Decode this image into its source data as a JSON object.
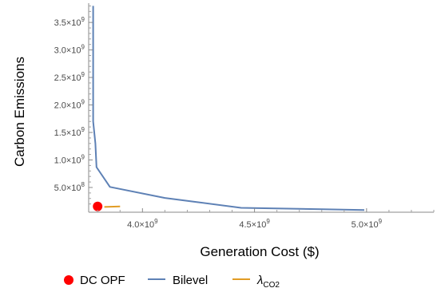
{
  "chart_data": {
    "type": "line",
    "title": "",
    "xlabel": "Generation Cost ($)",
    "ylabel": "Carbon Emissions",
    "xlim": [
      3760000000.0,
      5300000000.0
    ],
    "ylim": [
      50000000.0,
      3850000000.0
    ],
    "x_ticks": [
      {
        "value": 4000000000.0,
        "mantissa": "4.0",
        "exp": "9"
      },
      {
        "value": 4500000000.0,
        "mantissa": "4.5",
        "exp": "9"
      },
      {
        "value": 5000000000.0,
        "mantissa": "5.0",
        "exp": "9"
      }
    ],
    "y_ticks": [
      {
        "value": 500000000.0,
        "mantissa": "5.0",
        "exp": "8"
      },
      {
        "value": 1000000000.0,
        "mantissa": "1.0",
        "exp": "9"
      },
      {
        "value": 1500000000.0,
        "mantissa": "1.5",
        "exp": "9"
      },
      {
        "value": 2000000000.0,
        "mantissa": "2.0",
        "exp": "9"
      },
      {
        "value": 2500000000.0,
        "mantissa": "2.5",
        "exp": "9"
      },
      {
        "value": 3000000000.0,
        "mantissa": "3.0",
        "exp": "9"
      },
      {
        "value": 3500000000.0,
        "mantissa": "3.5",
        "exp": "9"
      }
    ],
    "grid": false,
    "legend_position": "bottom",
    "series": [
      {
        "name": "DC OPF",
        "kind": "point",
        "color": "#ff0000",
        "points": [
          [
            3800000000.0,
            155000000.0
          ]
        ]
      },
      {
        "name": "Bilevel",
        "kind": "line",
        "color": "#5e81b5",
        "points": [
          [
            3780000000.0,
            3800000000.0
          ],
          [
            3780000000.0,
            3000000000.0
          ],
          [
            3780000000.0,
            1700000000.0
          ],
          [
            3790000000.0,
            1300000000.0
          ],
          [
            3795000000.0,
            870000000.0
          ],
          [
            3855000000.0,
            510000000.0
          ],
          [
            4100000000.0,
            310000000.0
          ],
          [
            4440000000.0,
            130000000.0
          ],
          [
            4800000000.0,
            105000000.0
          ],
          [
            4990000000.0,
            90000000.0
          ]
        ]
      },
      {
        "name": "λ",
        "subscript": "CO2",
        "kind": "line",
        "color": "#e19c24",
        "points": [
          [
            3830000000.0,
            145000000.0
          ],
          [
            3900000000.0,
            155000000.0
          ]
        ]
      }
    ]
  }
}
